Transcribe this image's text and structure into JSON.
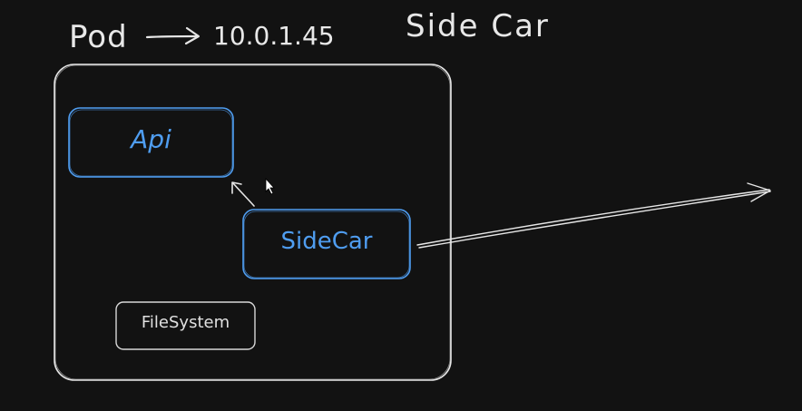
{
  "diagram": {
    "title": "Side Car",
    "pod_label": "Pod",
    "pod_ip": "10.0.1.45",
    "nodes": {
      "api": "Api",
      "sidecar": "SideCar",
      "filesystem": "FileSystem"
    },
    "colors": {
      "background": "#121212",
      "stroke_white": "#e6e6e6",
      "stroke_blue": "#4f9df0",
      "text_blue": "#4f9df0"
    }
  }
}
